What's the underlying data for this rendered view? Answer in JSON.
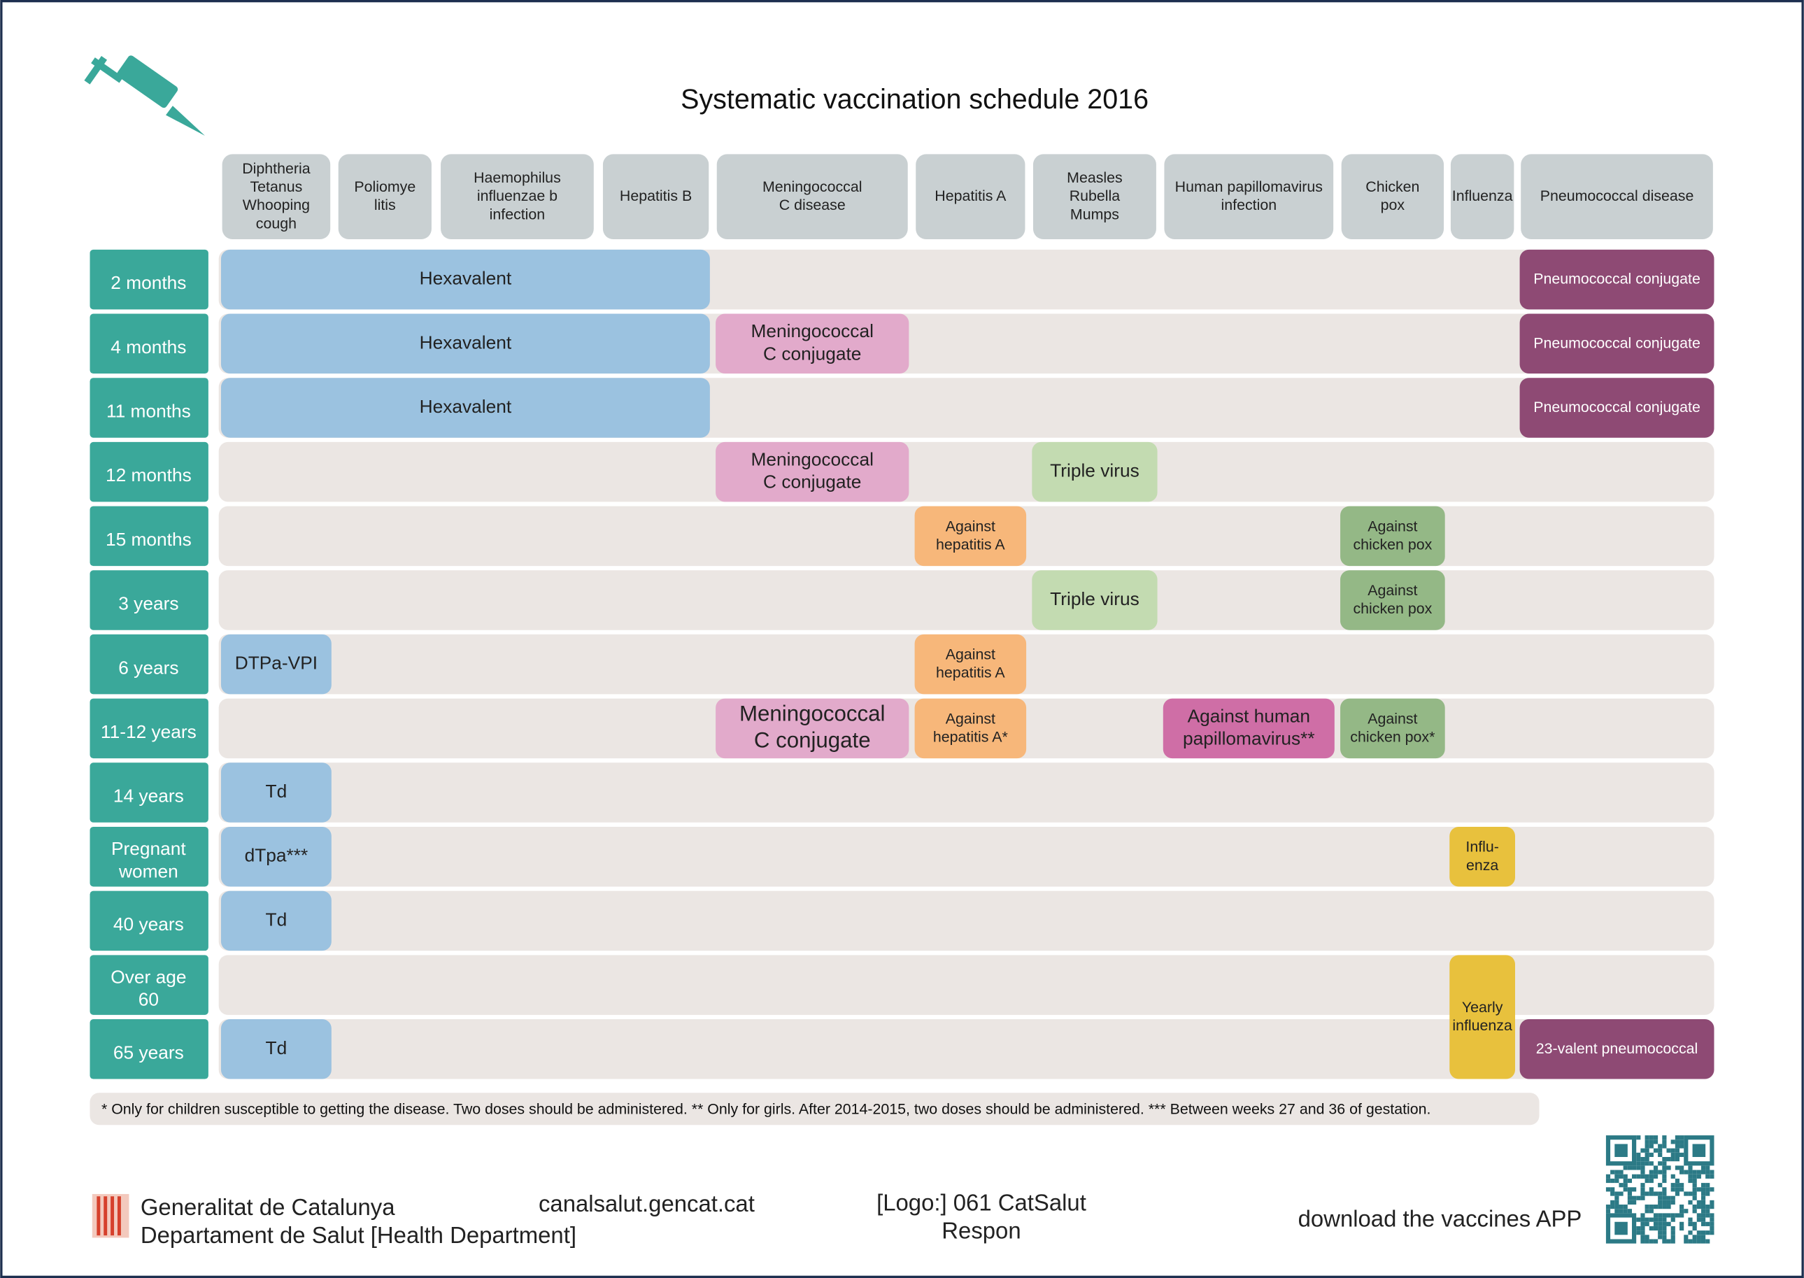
{
  "title": "Systematic vaccination schedule 2016",
  "columns": [
    [
      "Diphtheria",
      "Tetanus",
      "Whooping",
      "cough"
    ],
    [
      "Poliomye",
      "litis"
    ],
    [
      "Haemophilus",
      "influenzae b",
      "infection"
    ],
    [
      "Hepatitis B"
    ],
    [
      "Meningococcal",
      "C disease"
    ],
    [
      "Hepatitis A"
    ],
    [
      "Measles",
      "Rubella",
      "Mumps"
    ],
    [
      "Human papillomavirus",
      "infection"
    ],
    [
      "Chicken",
      "pox"
    ],
    [
      "Influenza"
    ],
    [
      "Pneumococcal disease"
    ]
  ],
  "rows": [
    {
      "label": [
        "2 months"
      ],
      "vaccines": [
        [
          "Hexavalent"
        ],
        [
          "Pneumococcal conjugate"
        ]
      ]
    },
    {
      "label": [
        "4 months"
      ],
      "vaccines": [
        [
          "Hexavalent"
        ],
        [
          "Meningococcal",
          "C conjugate"
        ],
        [
          "Pneumococcal conjugate"
        ]
      ]
    },
    {
      "label": [
        "11 months"
      ],
      "vaccines": [
        [
          "Hexavalent"
        ],
        [
          "Pneumococcal conjugate"
        ]
      ]
    },
    {
      "label": [
        "12 months"
      ],
      "vaccines": [
        [
          "Meningococcal",
          "C conjugate"
        ],
        [
          "Triple virus"
        ]
      ]
    },
    {
      "label": [
        "15 months"
      ],
      "vaccines": [
        [
          "Against",
          "hepatitis A"
        ],
        [
          "Against",
          "chicken pox"
        ]
      ]
    },
    {
      "label": [
        "3 years"
      ],
      "vaccines": [
        [
          "Triple virus"
        ],
        [
          "Against",
          "chicken pox"
        ]
      ]
    },
    {
      "label": [
        "6 years"
      ],
      "vaccines": [
        [
          "DTPa-VPI"
        ],
        [
          "Against",
          "hepatitis A"
        ]
      ]
    },
    {
      "label": [
        "11-12 years"
      ],
      "vaccines": [
        [
          "Meningococcal",
          "C conjugate"
        ],
        [
          "Against",
          "hepatitis A*"
        ],
        [
          "Against human",
          "papillomavirus**"
        ],
        [
          "Against",
          "chicken pox*"
        ]
      ]
    },
    {
      "label": [
        "14 years"
      ],
      "vaccines": [
        [
          "Td"
        ]
      ]
    },
    {
      "label": [
        "Pregnant",
        "women"
      ],
      "vaccines": [
        [
          "dTpa***"
        ],
        [
          "Influ-",
          "enza"
        ]
      ]
    },
    {
      "label": [
        "40 years"
      ],
      "vaccines": [
        [
          "Td"
        ]
      ]
    },
    {
      "label": [
        "Over age",
        "60"
      ],
      "vaccines": [
        [
          "Yearly",
          "influenza"
        ]
      ]
    },
    {
      "label": [
        "65 years"
      ],
      "vaccines": [
        [
          "Td"
        ],
        [
          "23-valent pneumococcal"
        ]
      ]
    }
  ],
  "notes": "* Only for children susceptible to getting the disease. Two doses should be administered. ** Only for girls. After 2014-2015, two doses should be administered. *** Between weeks 27 and 36 of gestation.",
  "footer": {
    "organization": [
      "Generalitat de Catalunya",
      "Departament de Salut [Health Department]"
    ],
    "website": "canalsalut.gencat.cat",
    "logo": [
      "[Logo:] 061 CatSalut",
      "Respon"
    ],
    "app": "download the vaccines APP"
  }
}
